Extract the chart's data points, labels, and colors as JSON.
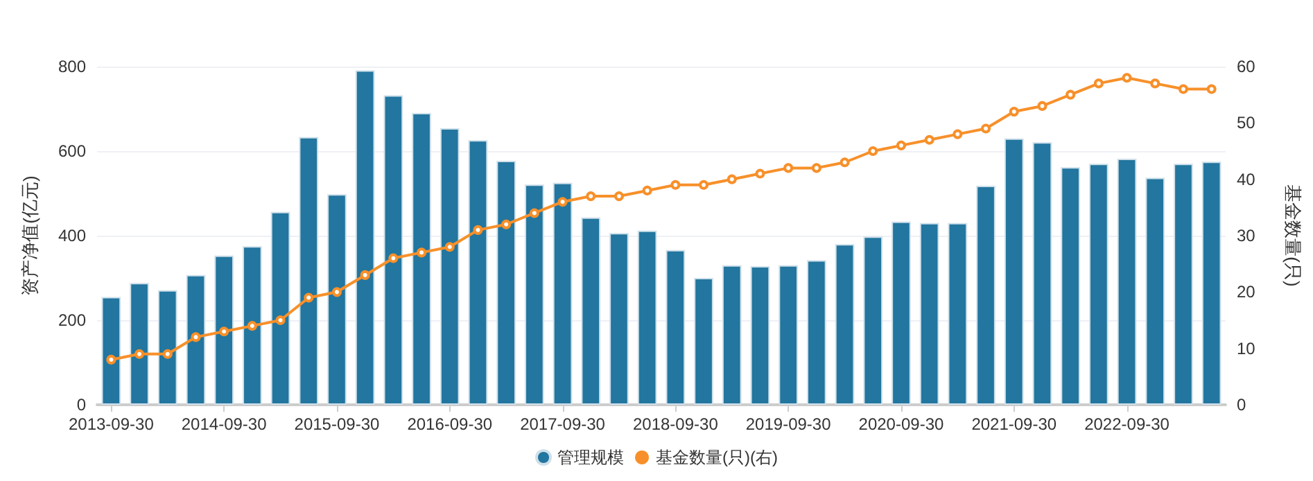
{
  "chart_data": {
    "type": "bar",
    "ylabel": "资产净值(亿元)",
    "y2label": "基金数量(只)",
    "categories": [
      "2013-09-30",
      null,
      null,
      null,
      "2014-09-30",
      null,
      null,
      null,
      "2015-09-30",
      null,
      null,
      null,
      "2016-09-30",
      null,
      null,
      null,
      "2017-09-30",
      null,
      null,
      null,
      "2018-09-30",
      null,
      null,
      null,
      "2019-09-30",
      null,
      null,
      null,
      "2020-09-30",
      null,
      null,
      null,
      "2021-09-30",
      null,
      null,
      null,
      "2022-09-30",
      null,
      null,
      null
    ],
    "series": [
      {
        "name": "管理规模",
        "color": "#22769f",
        "values": [
          255,
          288,
          271,
          307,
          353,
          375,
          456,
          633,
          498,
          791,
          732,
          690,
          654,
          626,
          577,
          521,
          525,
          443,
          406,
          412,
          366,
          300,
          330,
          328,
          330,
          342,
          380,
          398,
          433,
          430,
          430,
          518,
          630,
          621,
          562,
          570,
          582,
          537,
          570,
          575
        ]
      },
      {
        "name": "基金数量(只)(右)",
        "type": "line",
        "axis": "y2",
        "color": "#f7902a",
        "values": [
          8,
          9,
          9,
          12,
          13,
          14,
          15,
          19,
          20,
          23,
          26,
          27,
          28,
          31,
          32,
          34,
          36,
          37,
          37,
          38,
          39,
          39,
          40,
          41,
          42,
          42,
          43,
          45,
          46,
          47,
          48,
          49,
          52,
          53,
          55,
          57,
          58,
          57,
          56,
          56
        ]
      }
    ],
    "ylim": [
      0,
      800
    ],
    "yticks": [
      0,
      200,
      400,
      600,
      800
    ],
    "y2lim": [
      0,
      60
    ],
    "y2ticks": [
      0,
      10,
      20,
      30,
      40,
      50,
      60
    ],
    "grid": "y",
    "legend": "bottom",
    "marker": "circle",
    "line_style": "solid"
  }
}
